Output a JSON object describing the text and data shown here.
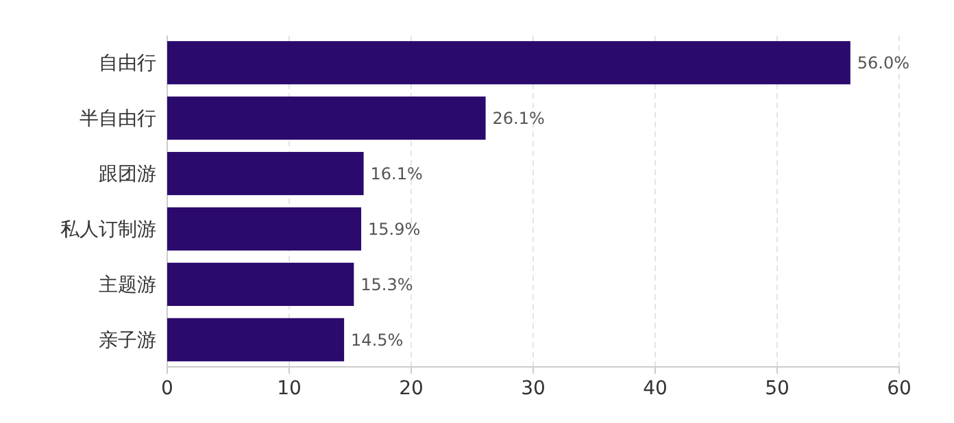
{
  "chart_data": {
    "type": "bar",
    "orientation": "horizontal",
    "categories": [
      "自由行",
      "半自由行",
      "跟团游",
      "私人订制游",
      "主题游",
      "亲子游"
    ],
    "values": [
      56.0,
      26.1,
      16.1,
      15.9,
      15.3,
      14.5
    ],
    "value_labels": [
      "56.0%",
      "26.1%",
      "16.1%",
      "15.9%",
      "15.3%",
      "14.5%"
    ],
    "color": "#2b0a6e",
    "xlim": [
      0,
      60
    ],
    "xticks": [
      0,
      10,
      20,
      30,
      40,
      50,
      60
    ],
    "grid": "x"
  }
}
